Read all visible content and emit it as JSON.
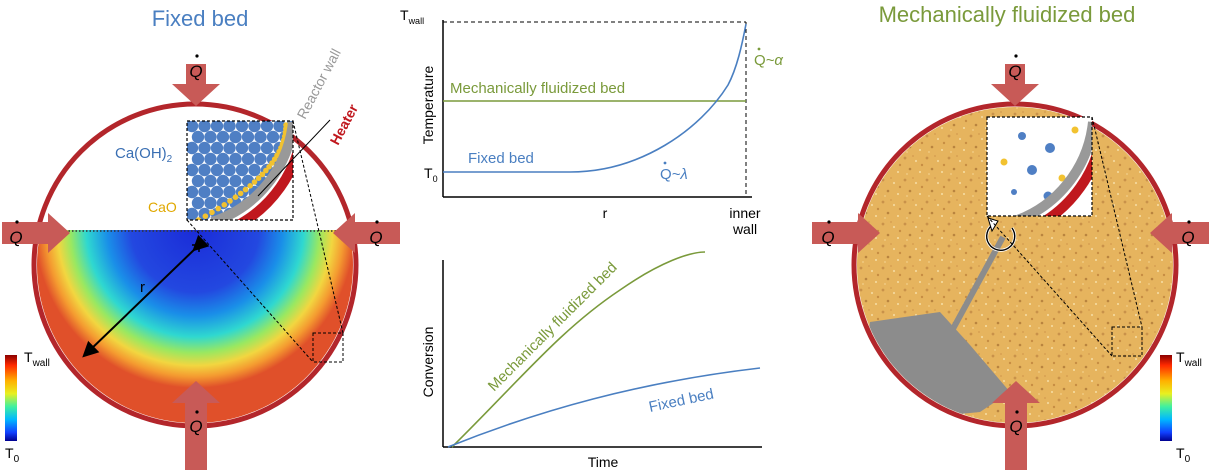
{
  "colors": {
    "blue": "#4a7fc1",
    "olive": "#7a9a3b",
    "red_wall": "#b3262b",
    "arrow": "#c85a57",
    "sand": "#e6b45e",
    "ball_blue": "#4f7fc4",
    "ball_yellow": "#f2c230"
  },
  "left_panel": {
    "title": "Fixed bed",
    "reactor_wall_label": "Reactor wall",
    "heater_label": "Heater",
    "species_main": "Ca(OH)",
    "species_main_sub": "2",
    "species_product": "CaO",
    "radius_label": "r",
    "heat_symbol": "Q",
    "scale_top": "T",
    "scale_top_sub": "wall",
    "scale_bottom": "T",
    "scale_bottom_sub": "0"
  },
  "right_panel": {
    "title": "Mechanically fluidized bed",
    "heat_symbol": "Q",
    "scale_top": "T",
    "scale_top_sub": "wall",
    "scale_bottom": "T",
    "scale_bottom_sub": "0"
  },
  "temperature_plot": {
    "ylabel": "Temperature",
    "y_top": "T",
    "y_top_sub": "wall",
    "y_bottom": "T",
    "y_bottom_sub": "0",
    "x_mid": "r",
    "x_end_line1": "inner",
    "x_end_line2": "wall",
    "series_fluidized": "Mechanically fluidized bed",
    "series_fixed": "Fixed bed",
    "ann_fluidized_q": "Q",
    "ann_fluidized_rel": "~α",
    "ann_fixed_q": "Q",
    "ann_fixed_rel": "~λ"
  },
  "conversion_plot": {
    "ylabel": "Conversion",
    "xlabel": "Time",
    "series_fluidized": "Mechanically fluidized bed",
    "series_fixed": "Fixed bed"
  }
}
